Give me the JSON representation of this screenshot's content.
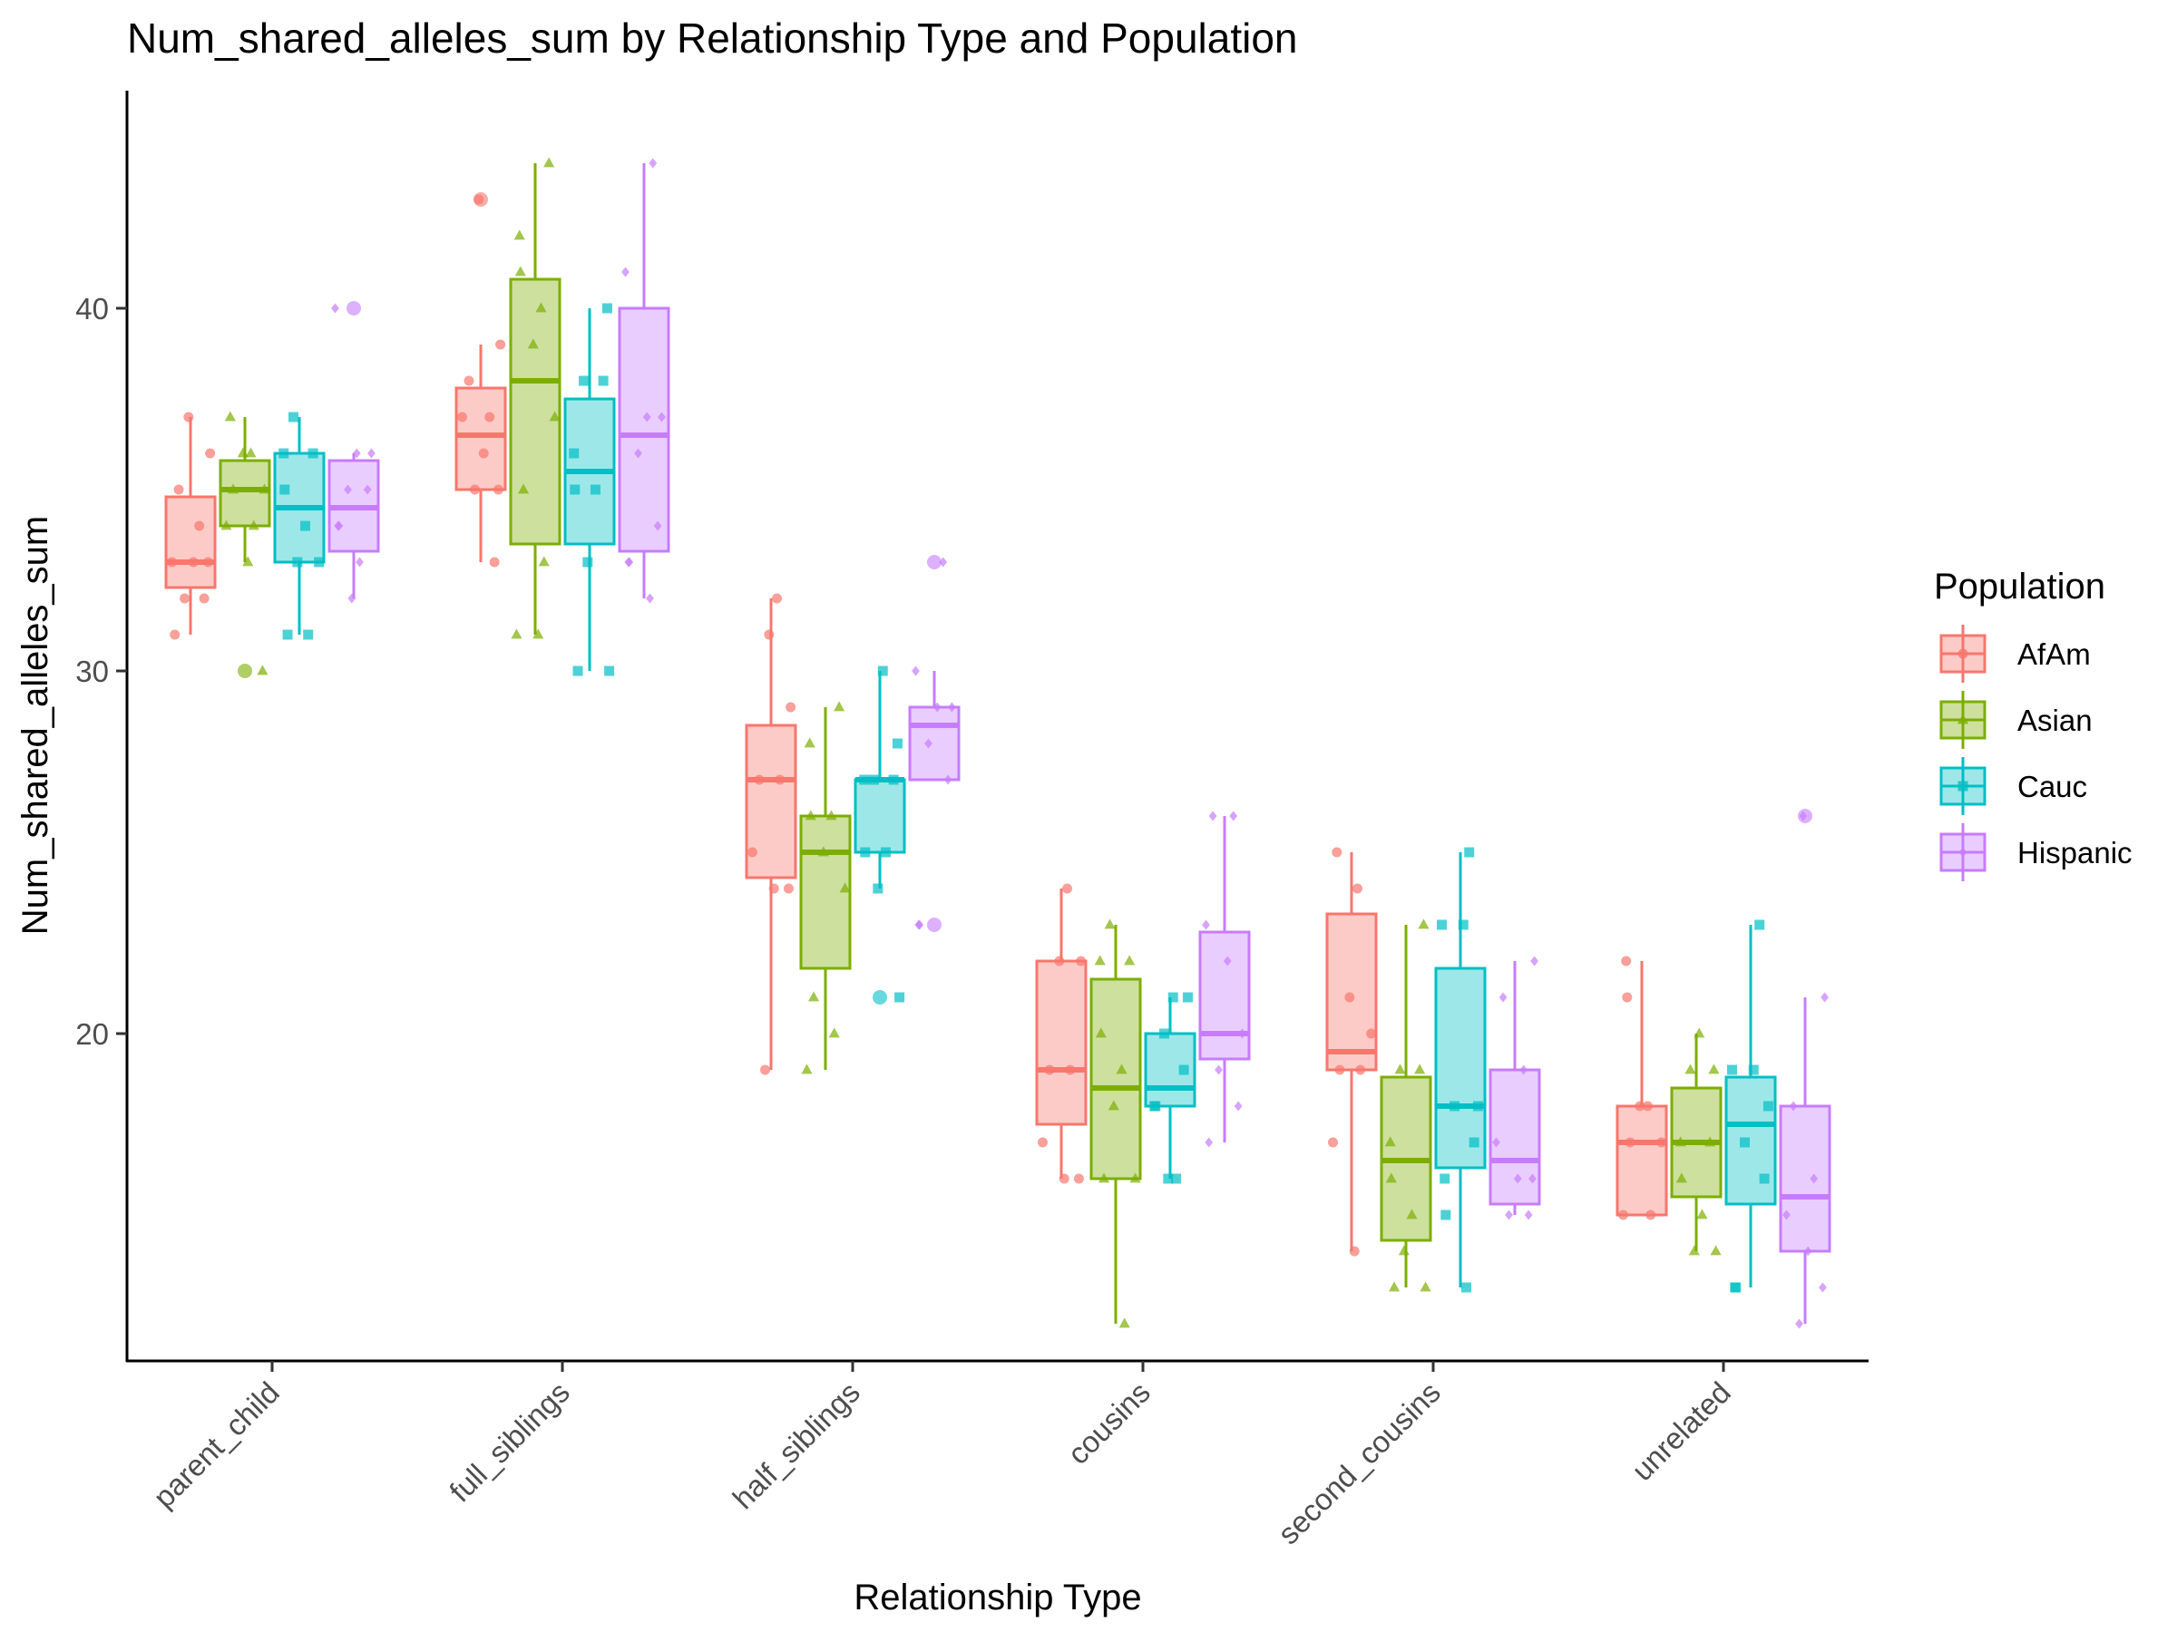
{
  "chart_data": {
    "type": "boxplot",
    "title": "Num_shared_alleles_sum by Relationship Type and Population",
    "xlabel": "Relationship Type",
    "ylabel": "Num_shared_alleles_sum",
    "ylim": [
      11,
      46
    ],
    "y_ticks": [
      20,
      30,
      40
    ],
    "categories": [
      "parent_child",
      "full_siblings",
      "half_siblings",
      "cousins",
      "second_cousins",
      "unrelated"
    ],
    "legend": {
      "title": "Population",
      "position": "right"
    },
    "grid": false,
    "series": [
      {
        "name": "AfAm",
        "color": "#F8766D",
        "marker": "circle",
        "boxes": [
          {
            "q1": 32.3,
            "median": 33.0,
            "q3": 34.8,
            "whisker_low": 31.0,
            "whisker_high": 37.0,
            "outliers": []
          },
          {
            "q1": 35.0,
            "median": 36.5,
            "q3": 37.8,
            "whisker_low": 33.0,
            "whisker_high": 39.0,
            "outliers": [
              43.0
            ]
          },
          {
            "q1": 24.3,
            "median": 27.0,
            "q3": 28.5,
            "whisker_low": 19.0,
            "whisker_high": 32.0,
            "outliers": []
          },
          {
            "q1": 17.5,
            "median": 19.0,
            "q3": 22.0,
            "whisker_low": 16.0,
            "whisker_high": 24.0,
            "outliers": []
          },
          {
            "q1": 19.0,
            "median": 19.5,
            "q3": 23.3,
            "whisker_low": 14.0,
            "whisker_high": 25.0,
            "outliers": []
          },
          {
            "q1": 15.0,
            "median": 17.0,
            "q3": 18.0,
            "whisker_low": 15.0,
            "whisker_high": 22.0,
            "outliers": []
          }
        ],
        "points": [
          [
            31,
            32,
            32,
            33,
            33,
            33,
            34,
            35,
            36,
            37
          ],
          [
            33,
            35,
            35,
            36,
            37,
            37,
            38,
            39,
            43
          ],
          [
            19,
            24,
            24,
            25,
            27,
            27,
            29,
            31,
            32
          ],
          [
            16,
            16,
            17,
            19,
            19,
            22,
            22,
            24
          ],
          [
            14,
            17,
            19,
            19,
            20,
            21,
            24,
            25
          ],
          [
            15,
            15,
            17,
            17,
            18,
            18,
            21,
            22
          ]
        ]
      },
      {
        "name": "Asian",
        "color": "#7CAE00",
        "marker": "triangle",
        "boxes": [
          {
            "q1": 34.0,
            "median": 35.0,
            "q3": 35.8,
            "whisker_low": 33.0,
            "whisker_high": 37.0,
            "outliers": [
              30.0
            ]
          },
          {
            "q1": 33.5,
            "median": 38.0,
            "q3": 40.8,
            "whisker_low": 31.0,
            "whisker_high": 44.0,
            "outliers": []
          },
          {
            "q1": 21.8,
            "median": 25.0,
            "q3": 26.0,
            "whisker_low": 19.0,
            "whisker_high": 29.0,
            "outliers": []
          },
          {
            "q1": 16.0,
            "median": 18.5,
            "q3": 21.5,
            "whisker_low": 12.0,
            "whisker_high": 23.0,
            "outliers": []
          },
          {
            "q1": 14.3,
            "median": 16.5,
            "q3": 18.8,
            "whisker_low": 13.0,
            "whisker_high": 23.0,
            "outliers": []
          },
          {
            "q1": 15.5,
            "median": 17.0,
            "q3": 18.5,
            "whisker_low": 14.0,
            "whisker_high": 20.0,
            "outliers": []
          }
        ],
        "points": [
          [
            30,
            33,
            34,
            34,
            35,
            35,
            36,
            36,
            37
          ],
          [
            31,
            31,
            33,
            35,
            37,
            39,
            40,
            41,
            42,
            44
          ],
          [
            19,
            20,
            21,
            24,
            25,
            26,
            26,
            28,
            29
          ],
          [
            12,
            16,
            16,
            18,
            19,
            20,
            22,
            22,
            23
          ],
          [
            13,
            13,
            14,
            15,
            16,
            17,
            19,
            19,
            23
          ],
          [
            14,
            14,
            15,
            16,
            17,
            17,
            19,
            19,
            20
          ]
        ]
      },
      {
        "name": "Cauc",
        "color": "#00BFC4",
        "marker": "square",
        "boxes": [
          {
            "q1": 33.0,
            "median": 34.5,
            "q3": 36.0,
            "whisker_low": 31.0,
            "whisker_high": 37.0,
            "outliers": []
          },
          {
            "q1": 33.5,
            "median": 35.5,
            "q3": 37.5,
            "whisker_low": 30.0,
            "whisker_high": 40.0,
            "outliers": []
          },
          {
            "q1": 25.0,
            "median": 27.0,
            "q3": 27.0,
            "whisker_low": 24.0,
            "whisker_high": 30.0,
            "outliers": [
              21.0
            ]
          },
          {
            "q1": 18.0,
            "median": 18.5,
            "q3": 20.0,
            "whisker_low": 16.0,
            "whisker_high": 21.0,
            "outliers": []
          },
          {
            "q1": 16.3,
            "median": 18.0,
            "q3": 21.8,
            "whisker_low": 13.0,
            "whisker_high": 25.0,
            "outliers": []
          },
          {
            "q1": 15.3,
            "median": 17.5,
            "q3": 18.8,
            "whisker_low": 13.0,
            "whisker_high": 23.0,
            "outliers": []
          }
        ],
        "points": [
          [
            31,
            31,
            33,
            33,
            34,
            35,
            36,
            36,
            37
          ],
          [
            30,
            30,
            33,
            35,
            35,
            36,
            38,
            38,
            40
          ],
          [
            21,
            24,
            25,
            25,
            27,
            27,
            27,
            28,
            30
          ],
          [
            16,
            16,
            18,
            18,
            19,
            20,
            21,
            21
          ],
          [
            13,
            15,
            16,
            17,
            18,
            18,
            23,
            23,
            25
          ],
          [
            13,
            13,
            16,
            17,
            18,
            19,
            19,
            23
          ]
        ]
      },
      {
        "name": "Hispanic",
        "color": "#C77CFF",
        "marker": "diamond",
        "boxes": [
          {
            "q1": 33.3,
            "median": 34.5,
            "q3": 35.8,
            "whisker_low": 32.0,
            "whisker_high": 36.0,
            "outliers": [
              40.0
            ]
          },
          {
            "q1": 33.3,
            "median": 36.5,
            "q3": 40.0,
            "whisker_low": 32.0,
            "whisker_high": 44.0,
            "outliers": []
          },
          {
            "q1": 27.0,
            "median": 28.5,
            "q3": 29.0,
            "whisker_low": 27.0,
            "whisker_high": 30.0,
            "outliers": [
              23.0,
              33.0
            ]
          },
          {
            "q1": 19.3,
            "median": 20.0,
            "q3": 22.8,
            "whisker_low": 17.0,
            "whisker_high": 26.0,
            "outliers": []
          },
          {
            "q1": 15.3,
            "median": 16.5,
            "q3": 19.0,
            "whisker_low": 15.0,
            "whisker_high": 22.0,
            "outliers": []
          },
          {
            "q1": 14.0,
            "median": 15.5,
            "q3": 18.0,
            "whisker_low": 12.0,
            "whisker_high": 21.0,
            "outliers": [
              26.0
            ]
          }
        ],
        "points": [
          [
            32,
            33,
            34,
            34,
            35,
            35,
            36,
            36,
            40
          ],
          [
            32,
            33,
            33,
            34,
            36,
            37,
            37,
            41,
            44
          ],
          [
            23,
            23,
            27,
            28,
            29,
            29,
            30,
            33
          ],
          [
            17,
            18,
            19,
            20,
            22,
            23,
            26,
            26
          ],
          [
            15,
            15,
            16,
            16,
            17,
            19,
            21,
            22
          ],
          [
            12,
            13,
            14,
            15,
            16,
            18,
            21,
            26
          ]
        ]
      }
    ]
  }
}
